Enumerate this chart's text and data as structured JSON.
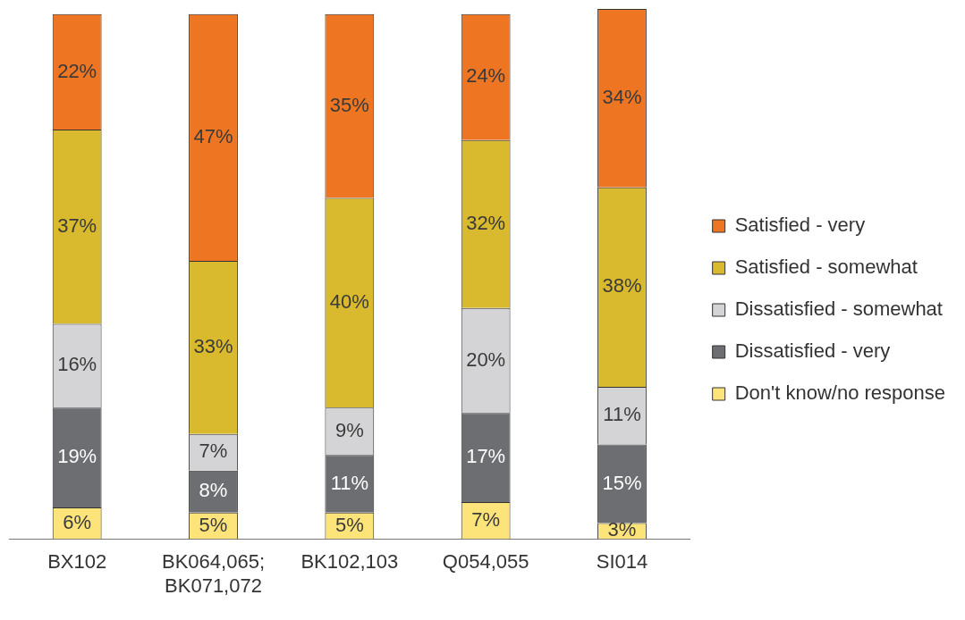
{
  "chart_data": {
    "type": "bar",
    "stacked": true,
    "categories": [
      "BX102",
      "BK064,065; BK071,072",
      "BK102,103",
      "Q054,055",
      "SI014"
    ],
    "ylim": [
      0,
      101
    ],
    "tick_labels": "x",
    "grid": false,
    "legend": "right",
    "series": [
      {
        "name": "Don't know/no response",
        "color": "#fde47a",
        "values": [
          6,
          5,
          5,
          7,
          3
        ],
        "value_labels": [
          "6%",
          "5%",
          "5%",
          "7%",
          "3%"
        ]
      },
      {
        "name": "Dissatisfied - very",
        "color": "#6d6e72",
        "values": [
          19,
          8,
          11,
          17,
          15
        ],
        "value_labels": [
          "19%",
          "8%",
          "11%",
          "17%",
          "15%"
        ]
      },
      {
        "name": "Dissatisfied - somewhat",
        "color": "#d4d4d6",
        "values": [
          16,
          7,
          9,
          20,
          11
        ],
        "value_labels": [
          "16%",
          "7%",
          "9%",
          "20%",
          "11%"
        ]
      },
      {
        "name": "Satisfied - somewhat",
        "color": "#d9b92e",
        "values": [
          37,
          33,
          40,
          32,
          38
        ],
        "value_labels": [
          "37%",
          "33%",
          "40%",
          "32%",
          "38%"
        ]
      },
      {
        "name": "Satisfied - very",
        "color": "#ee7623",
        "values": [
          22,
          47,
          35,
          24,
          34
        ],
        "value_labels": [
          "22%",
          "47%",
          "35%",
          "24%",
          "34%"
        ]
      }
    ]
  }
}
